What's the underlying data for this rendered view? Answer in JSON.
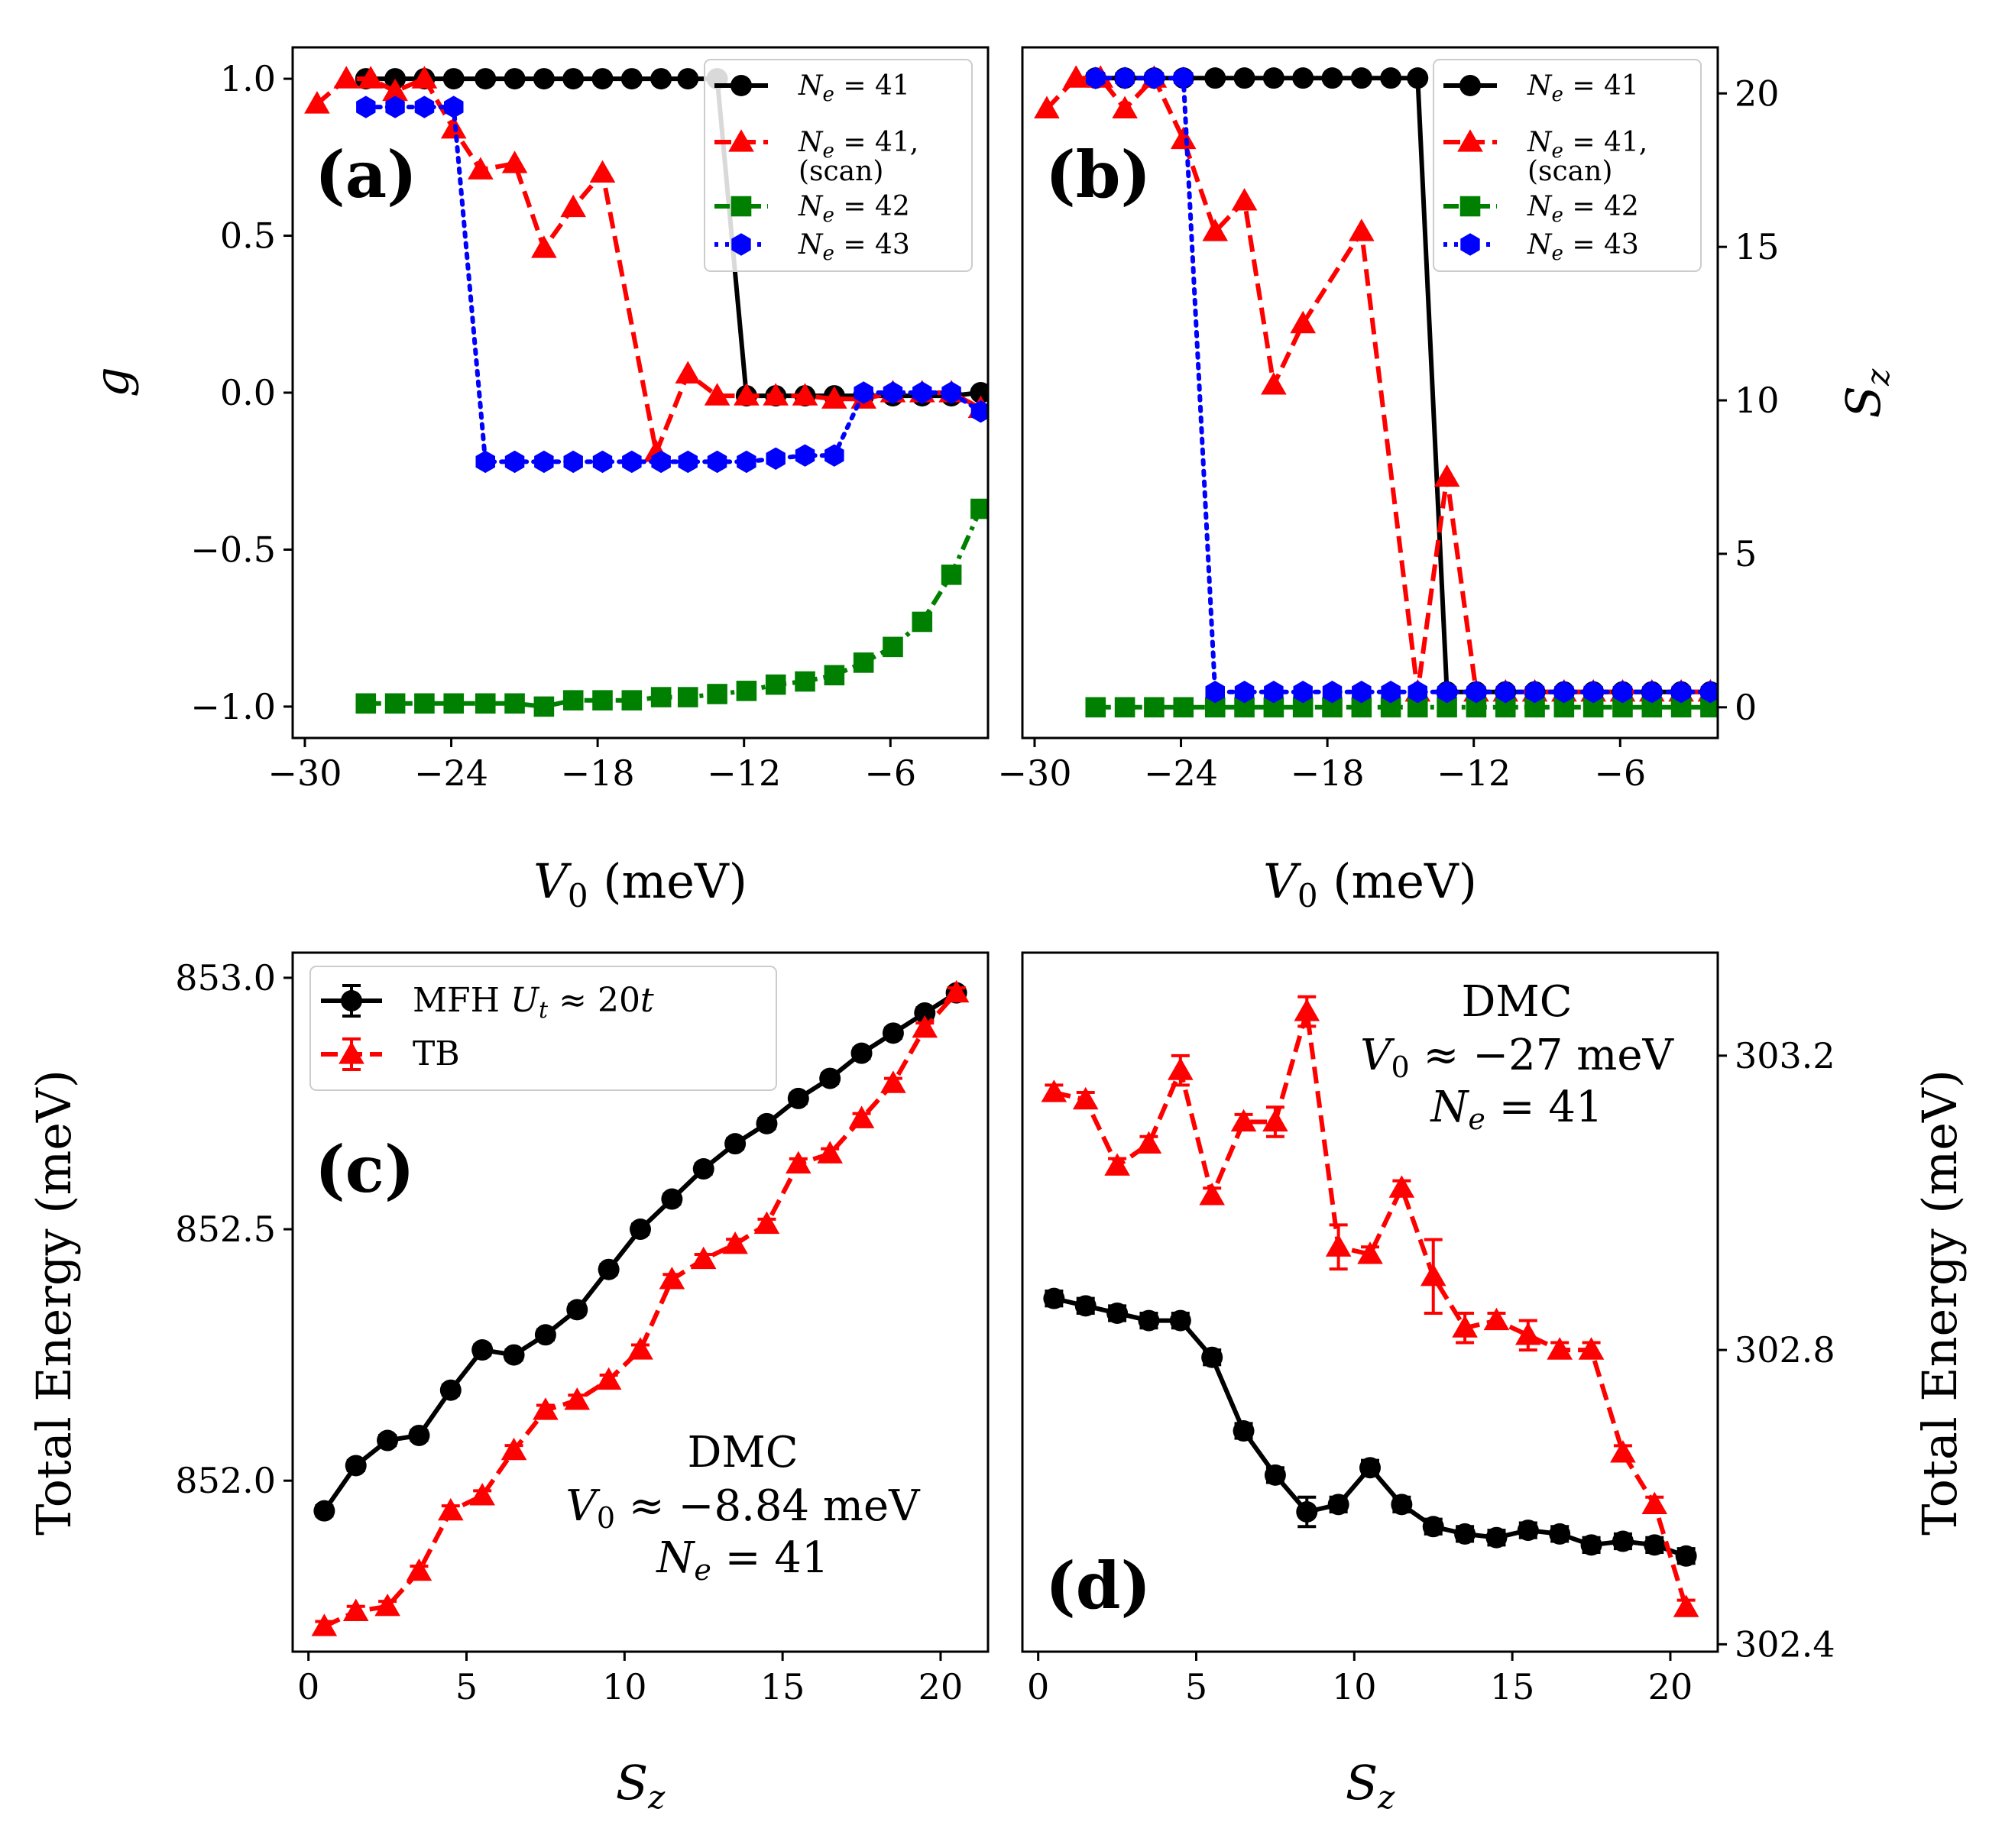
{
  "figure": {
    "title": ""
  },
  "colors": {
    "black": "#000000",
    "red": "#ff0000",
    "green": "#008000",
    "blue": "#0000ff"
  },
  "chart_data": [
    {
      "id": "a",
      "type": "line",
      "panel_label": "(a)",
      "xlabel": "V₀ (meV)",
      "ylabel": "g",
      "xlim": [
        -30.5,
        -2.0
      ],
      "ylim": [
        -1.1,
        1.1
      ],
      "xticks": [
        -30,
        -24,
        -18,
        -12,
        -6
      ],
      "xtick_labels": [
        "−30",
        "−24",
        "−18",
        "−12",
        "−6"
      ],
      "yticks": [
        -1.0,
        -0.5,
        0.0,
        0.5,
        1.0
      ],
      "ytick_labels": [
        "−1.0",
        "−0.5",
        "0.0",
        "0.5",
        "1.0"
      ],
      "legend_position": "top-right",
      "series": [
        {
          "name": "N_e = 41",
          "label_main": "N",
          "label_sub": "e",
          "label_rest": " = 41",
          "label_line2": "",
          "color": "black",
          "style": "solid",
          "marker": "circle",
          "x": [
            -27.5,
            -26.3,
            -25.1,
            -23.9,
            -22.6,
            -21.4,
            -20.2,
            -19.0,
            -17.8,
            -16.6,
            -15.4,
            -14.3,
            -13.1,
            -11.9,
            -10.7,
            -9.5,
            -8.3,
            -7.1,
            -5.9,
            -4.7,
            -3.5,
            -2.3
          ],
          "y": [
            1.0,
            1.0,
            1.0,
            1.0,
            1.0,
            1.0,
            1.0,
            1.0,
            1.0,
            1.0,
            1.0,
            1.0,
            1.0,
            -0.01,
            -0.01,
            -0.01,
            -0.01,
            -0.01,
            -0.01,
            -0.01,
            -0.01,
            0.0
          ]
        },
        {
          "name": "N_e = 41, (scan)",
          "label_main": "N",
          "label_sub": "e",
          "label_rest": " = 41,",
          "label_line2": "(scan)",
          "color": "red",
          "style": "dashed",
          "marker": "triangle",
          "x": [
            -29.5,
            -28.3,
            -27.3,
            -26.3,
            -25.1,
            -23.9,
            -22.8,
            -21.4,
            -20.2,
            -19.0,
            -17.8,
            -15.6,
            -14.3,
            -13.1,
            -11.9,
            -10.7,
            -9.5,
            -8.3,
            -7.1,
            -5.9,
            -4.7,
            -3.5,
            -2.3
          ],
          "y": [
            0.92,
            1.0,
            1.0,
            0.96,
            1.0,
            0.84,
            0.71,
            0.73,
            0.46,
            0.59,
            0.7,
            -0.19,
            0.06,
            -0.01,
            -0.01,
            -0.01,
            -0.01,
            -0.02,
            -0.02,
            0.0,
            0.0,
            0.0,
            -0.05
          ]
        },
        {
          "name": "N_e = 42",
          "label_main": "N",
          "label_sub": "e",
          "label_rest": " = 42",
          "label_line2": "",
          "color": "green",
          "style": "dashdot",
          "marker": "square",
          "x": [
            -27.5,
            -26.3,
            -25.1,
            -23.9,
            -22.6,
            -21.4,
            -20.2,
            -19.0,
            -17.8,
            -16.6,
            -15.4,
            -14.3,
            -13.1,
            -11.9,
            -10.7,
            -9.5,
            -8.3,
            -7.1,
            -5.9,
            -4.7,
            -3.5,
            -2.3
          ],
          "y": [
            -0.99,
            -0.99,
            -0.99,
            -0.99,
            -0.99,
            -0.99,
            -1.0,
            -0.98,
            -0.98,
            -0.98,
            -0.97,
            -0.97,
            -0.96,
            -0.95,
            -0.93,
            -0.92,
            -0.9,
            -0.86,
            -0.81,
            -0.73,
            -0.58,
            -0.37
          ]
        },
        {
          "name": "N_e = 43",
          "label_main": "N",
          "label_sub": "e",
          "label_rest": " = 43",
          "label_line2": "",
          "color": "blue",
          "style": "dotted",
          "marker": "hexagon",
          "x": [
            -27.5,
            -26.3,
            -25.1,
            -23.9,
            -22.6,
            -21.4,
            -20.2,
            -19.0,
            -17.8,
            -16.6,
            -15.4,
            -14.3,
            -13.1,
            -11.9,
            -10.7,
            -9.5,
            -8.3,
            -7.1,
            -5.9,
            -4.7,
            -3.5,
            -2.3
          ],
          "y": [
            0.91,
            0.91,
            0.91,
            0.91,
            -0.22,
            -0.22,
            -0.22,
            -0.22,
            -0.22,
            -0.22,
            -0.22,
            -0.22,
            -0.22,
            -0.22,
            -0.21,
            -0.2,
            -0.2,
            0.0,
            0.0,
            0.0,
            0.0,
            -0.06
          ]
        }
      ]
    },
    {
      "id": "b",
      "type": "line",
      "panel_label": "(b)",
      "xlabel": "V₀ (meV)",
      "ylabel": "S_z",
      "ylabel_main": "S",
      "ylabel_sub": "z",
      "xlim": [
        -30.5,
        -2.0
      ],
      "ylim": [
        -1.0,
        21.5
      ],
      "xticks": [
        -30,
        -24,
        -18,
        -12,
        -6
      ],
      "xtick_labels": [
        "−30",
        "−24",
        "−18",
        "−12",
        "−6"
      ],
      "yticks": [
        0,
        5,
        10,
        15,
        20
      ],
      "ytick_labels": [
        "0",
        "5",
        "10",
        "15",
        "20"
      ],
      "yaxis_side": "right",
      "legend_position": "top-right",
      "series": [
        {
          "name": "N_e = 41",
          "label_main": "N",
          "label_sub": "e",
          "label_rest": " = 41",
          "label_line2": "",
          "color": "black",
          "style": "solid",
          "marker": "circle",
          "x": [
            -27.5,
            -26.3,
            -25.1,
            -23.9,
            -22.6,
            -21.4,
            -20.2,
            -19.0,
            -17.8,
            -16.6,
            -15.4,
            -14.3,
            -13.1,
            -11.9,
            -10.7,
            -9.5,
            -8.3,
            -7.1,
            -5.9,
            -4.7,
            -3.5,
            -2.3
          ],
          "y": [
            20.5,
            20.5,
            20.5,
            20.5,
            20.5,
            20.5,
            20.5,
            20.5,
            20.5,
            20.5,
            20.5,
            20.5,
            0.5,
            0.5,
            0.5,
            0.5,
            0.5,
            0.5,
            0.5,
            0.5,
            0.5,
            0.5
          ]
        },
        {
          "name": "N_e = 41, (scan)",
          "label_main": "N",
          "label_sub": "e",
          "label_rest": " = 41,",
          "label_line2": "(scan)",
          "color": "red",
          "style": "dashed",
          "marker": "triangle",
          "x": [
            -29.5,
            -28.3,
            -27.3,
            -26.3,
            -25.1,
            -23.9,
            -22.6,
            -21.4,
            -20.2,
            -19.0,
            -16.6,
            -14.3,
            -13.1,
            -11.9,
            -10.7,
            -9.5,
            -8.3,
            -7.1,
            -5.9,
            -4.7,
            -3.5,
            -2.3
          ],
          "y": [
            19.5,
            20.5,
            20.5,
            19.5,
            20.5,
            18.5,
            15.5,
            16.5,
            10.5,
            12.5,
            15.5,
            0.5,
            7.5,
            0.5,
            0.5,
            0.5,
            0.5,
            0.5,
            0.5,
            0.5,
            0.5,
            0.5
          ]
        },
        {
          "name": "N_e = 42",
          "label_main": "N",
          "label_sub": "e",
          "label_rest": " = 42",
          "label_line2": "",
          "color": "green",
          "style": "dashdot",
          "marker": "square",
          "x": [
            -27.5,
            -26.3,
            -25.1,
            -23.9,
            -22.6,
            -21.4,
            -20.2,
            -19.0,
            -17.8,
            -16.6,
            -15.4,
            -14.3,
            -13.1,
            -11.9,
            -10.7,
            -9.5,
            -8.3,
            -7.1,
            -5.9,
            -4.7,
            -3.5,
            -2.3
          ],
          "y": [
            0,
            0,
            0,
            0,
            0,
            0,
            0,
            0,
            0,
            0,
            0,
            0,
            0,
            0,
            0,
            0,
            0,
            0,
            0,
            0,
            0,
            0
          ]
        },
        {
          "name": "N_e = 43",
          "label_main": "N",
          "label_sub": "e",
          "label_rest": " = 43",
          "label_line2": "",
          "color": "blue",
          "style": "dotted",
          "marker": "hexagon",
          "x": [
            -27.5,
            -26.3,
            -25.1,
            -23.9,
            -22.6,
            -21.4,
            -20.2,
            -19.0,
            -17.8,
            -16.6,
            -15.4,
            -14.3,
            -13.1,
            -11.9,
            -10.7,
            -9.5,
            -8.3,
            -7.1,
            -5.9,
            -4.7,
            -3.5,
            -2.3
          ],
          "y": [
            20.5,
            20.5,
            20.5,
            20.5,
            0.5,
            0.5,
            0.5,
            0.5,
            0.5,
            0.5,
            0.5,
            0.5,
            0.5,
            0.5,
            0.5,
            0.5,
            0.5,
            0.5,
            0.5,
            0.5,
            0.5,
            0.5
          ]
        }
      ]
    },
    {
      "id": "c",
      "type": "line",
      "panel_label": "(c)",
      "xlabel": "S_z",
      "xlabel_main": "S",
      "xlabel_sub": "z",
      "ylabel": "Total Energy (meV)",
      "xlim": [
        -0.5,
        21.5
      ],
      "ylim": [
        851.66,
        853.05
      ],
      "xticks": [
        0,
        5,
        10,
        15,
        20
      ],
      "xtick_labels": [
        "0",
        "5",
        "10",
        "15",
        "20"
      ],
      "yticks": [
        852.0,
        852.5,
        853.0
      ],
      "ytick_labels": [
        "852.0",
        "852.5",
        "853.0"
      ],
      "legend_position": "top-left",
      "annotation": [
        "DMC",
        "V₀ ≈ −8.84 meV",
        "N_e = 41"
      ],
      "annotation_lines": {
        "l1": "DMC",
        "l2_main": "V",
        "l2_sub": "0",
        "l2_rest": " ≈ −8.84 meV",
        "l3_main": "N",
        "l3_sub": "e",
        "l3_rest": " = 41"
      },
      "series": [
        {
          "name": "MFH U_t ≈ 20t",
          "label_main": "MFH ",
          "label_it": "U",
          "label_sub": "t",
          "label_rest": " ≈ 20",
          "label_it2": "t",
          "color": "black",
          "style": "solid",
          "marker": "circle",
          "x": [
            0.5,
            1.5,
            2.5,
            3.5,
            4.5,
            5.5,
            6.5,
            7.5,
            8.5,
            9.5,
            10.5,
            11.5,
            12.5,
            13.5,
            14.5,
            15.5,
            16.5,
            17.5,
            18.5,
            19.5,
            20.5
          ],
          "y": [
            851.94,
            852.03,
            852.08,
            852.09,
            852.18,
            852.26,
            852.25,
            852.29,
            852.34,
            852.42,
            852.5,
            852.56,
            852.62,
            852.67,
            852.71,
            852.76,
            852.8,
            852.85,
            852.89,
            852.93,
            852.97
          ],
          "err": [
            0.01,
            0.01,
            0.01,
            0.01,
            0.01,
            0.01,
            0.01,
            0.01,
            0.01,
            0.01,
            0.01,
            0.01,
            0.01,
            0.01,
            0.01,
            0.01,
            0.01,
            0.01,
            0.01,
            0.01,
            0.01
          ]
        },
        {
          "name": "TB",
          "label_main": "TB",
          "label_it": "",
          "label_sub": "",
          "label_rest": "",
          "label_it2": "",
          "color": "red",
          "style": "dashed",
          "marker": "triangle",
          "x": [
            0.5,
            1.5,
            2.5,
            3.5,
            4.5,
            5.5,
            6.5,
            7.5,
            8.5,
            9.5,
            10.5,
            11.5,
            12.5,
            13.5,
            14.5,
            15.5,
            16.5,
            17.5,
            18.5,
            19.5,
            20.5
          ],
          "y": [
            851.71,
            851.74,
            851.75,
            851.82,
            851.94,
            851.97,
            852.06,
            852.14,
            852.16,
            852.2,
            852.26,
            852.4,
            852.44,
            852.47,
            852.51,
            852.63,
            852.65,
            852.72,
            852.79,
            852.9,
            852.97
          ],
          "err": [
            0.01,
            0.01,
            0.01,
            0.01,
            0.01,
            0.01,
            0.01,
            0.01,
            0.01,
            0.01,
            0.01,
            0.01,
            0.01,
            0.01,
            0.01,
            0.01,
            0.01,
            0.01,
            0.01,
            0.01,
            0.01
          ]
        }
      ]
    },
    {
      "id": "d",
      "type": "line",
      "panel_label": "(d)",
      "xlabel": "S_z",
      "xlabel_main": "S",
      "xlabel_sub": "z",
      "ylabel": "Total Energy (meV)",
      "xlim": [
        -0.5,
        21.5
      ],
      "ylim": [
        302.39,
        303.34
      ],
      "xticks": [
        0,
        5,
        10,
        15,
        20
      ],
      "xtick_labels": [
        "0",
        "5",
        "10",
        "15",
        "20"
      ],
      "yticks": [
        302.4,
        302.8,
        303.2
      ],
      "ytick_labels": [
        "302.4",
        "302.8",
        "303.2"
      ],
      "yaxis_side": "right",
      "annotation": [
        "DMC",
        "V₀ ≈ −27 meV",
        "N_e = 41"
      ],
      "annotation_lines": {
        "l1": "DMC",
        "l2_main": "V",
        "l2_sub": "0",
        "l2_rest": " ≈ −27 meV",
        "l3_main": "N",
        "l3_sub": "e",
        "l3_rest": " = 41"
      },
      "series": [
        {
          "name": "MFH U_t ≈ 20t",
          "color": "black",
          "style": "solid",
          "marker": "circle",
          "x": [
            0.5,
            1.5,
            2.5,
            3.5,
            4.5,
            5.5,
            6.5,
            7.5,
            8.5,
            9.5,
            10.5,
            11.5,
            12.5,
            13.5,
            14.5,
            15.5,
            16.5,
            17.5,
            18.5,
            19.5,
            20.5
          ],
          "y": [
            302.87,
            302.86,
            302.85,
            302.84,
            302.84,
            302.79,
            302.69,
            302.63,
            302.58,
            302.59,
            302.64,
            302.59,
            302.56,
            302.55,
            302.545,
            302.555,
            302.55,
            302.535,
            302.54,
            302.535,
            302.52
          ],
          "err": [
            0.01,
            0.01,
            0.01,
            0.01,
            0.01,
            0.01,
            0.01,
            0.01,
            0.02,
            0.01,
            0.01,
            0.01,
            0.01,
            0.01,
            0.01,
            0.01,
            0.01,
            0.01,
            0.01,
            0.01,
            0.01
          ]
        },
        {
          "name": "TB",
          "color": "red",
          "style": "dashed",
          "marker": "triangle",
          "x": [
            0.5,
            1.5,
            2.5,
            3.5,
            4.5,
            5.5,
            6.5,
            7.5,
            8.5,
            9.5,
            10.5,
            11.5,
            12.5,
            13.5,
            14.5,
            15.5,
            16.5,
            17.5,
            18.5,
            19.5,
            20.5
          ],
          "y": [
            303.15,
            303.14,
            303.05,
            303.08,
            303.18,
            303.01,
            303.11,
            303.11,
            303.26,
            302.94,
            302.93,
            303.02,
            302.9,
            302.83,
            302.84,
            302.82,
            302.8,
            302.8,
            302.66,
            302.59,
            302.45
          ],
          "err": [
            0.01,
            0.01,
            0.01,
            0.01,
            0.02,
            0.01,
            0.01,
            0.02,
            0.02,
            0.03,
            0.01,
            0.01,
            0.05,
            0.02,
            0.01,
            0.02,
            0.01,
            0.01,
            0.01,
            0.01,
            0.01
          ]
        }
      ]
    }
  ]
}
